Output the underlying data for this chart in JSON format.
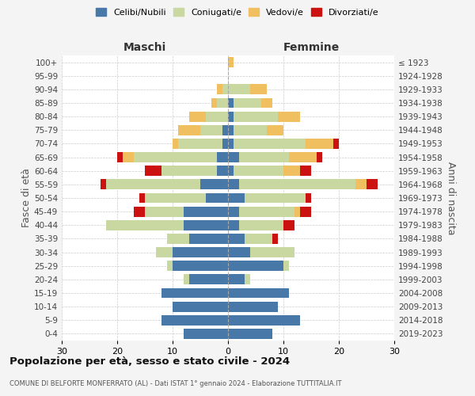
{
  "age_groups": [
    "0-4",
    "5-9",
    "10-14",
    "15-19",
    "20-24",
    "25-29",
    "30-34",
    "35-39",
    "40-44",
    "45-49",
    "50-54",
    "55-59",
    "60-64",
    "65-69",
    "70-74",
    "75-79",
    "80-84",
    "85-89",
    "90-94",
    "95-99",
    "100+"
  ],
  "birth_years": [
    "2019-2023",
    "2014-2018",
    "2009-2013",
    "2004-2008",
    "1999-2003",
    "1994-1998",
    "1989-1993",
    "1984-1988",
    "1979-1983",
    "1974-1978",
    "1969-1973",
    "1964-1968",
    "1959-1963",
    "1954-1958",
    "1949-1953",
    "1944-1948",
    "1939-1943",
    "1934-1938",
    "1929-1933",
    "1924-1928",
    "≤ 1923"
  ],
  "colors": {
    "celibi": "#4878a8",
    "coniugati": "#c8d8a0",
    "vedovi": "#f0c060",
    "divorziati": "#cc1111"
  },
  "males": {
    "celibi": [
      8,
      12,
      10,
      12,
      7,
      10,
      10,
      7,
      8,
      8,
      4,
      5,
      2,
      2,
      1,
      1,
      0,
      0,
      0,
      0,
      0
    ],
    "coniugati": [
      0,
      0,
      0,
      0,
      1,
      1,
      3,
      4,
      14,
      7,
      11,
      17,
      10,
      15,
      8,
      4,
      4,
      2,
      1,
      0,
      0
    ],
    "vedovi": [
      0,
      0,
      0,
      0,
      0,
      0,
      0,
      0,
      0,
      0,
      0,
      0,
      0,
      2,
      1,
      4,
      3,
      1,
      1,
      0,
      0
    ],
    "divorziati": [
      0,
      0,
      0,
      0,
      0,
      0,
      0,
      0,
      0,
      2,
      1,
      1,
      3,
      1,
      0,
      0,
      0,
      0,
      0,
      0,
      0
    ]
  },
  "females": {
    "nubili": [
      8,
      13,
      9,
      11,
      3,
      10,
      4,
      3,
      2,
      2,
      3,
      2,
      1,
      2,
      1,
      1,
      1,
      1,
      0,
      0,
      0
    ],
    "coniugate": [
      0,
      0,
      0,
      0,
      1,
      1,
      8,
      5,
      8,
      10,
      11,
      21,
      9,
      9,
      13,
      6,
      8,
      5,
      4,
      0,
      0
    ],
    "vedove": [
      0,
      0,
      0,
      0,
      0,
      0,
      0,
      0,
      0,
      1,
      0,
      2,
      3,
      5,
      5,
      3,
      4,
      2,
      3,
      0,
      1
    ],
    "divorziate": [
      0,
      0,
      0,
      0,
      0,
      0,
      0,
      1,
      2,
      2,
      1,
      2,
      2,
      1,
      1,
      0,
      0,
      0,
      0,
      0,
      0
    ]
  },
  "title": "Popolazione per età, sesso e stato civile - 2024",
  "subtitle": "COMUNE DI BELFORTE MONFERRATO (AL) - Dati ISTAT 1° gennaio 2024 - Elaborazione TUTTITALIA.IT",
  "xlabel_left": "Maschi",
  "xlabel_right": "Femmine",
  "ylabel_left": "Fasce di età",
  "ylabel_right": "Anni di nascita",
  "legend_labels": [
    "Celibi/Nubili",
    "Coniugati/e",
    "Vedovi/e",
    "Divorziati/e"
  ],
  "xlim": 30,
  "bg_color": "#f4f4f4",
  "plot_bg_color": "#ffffff"
}
